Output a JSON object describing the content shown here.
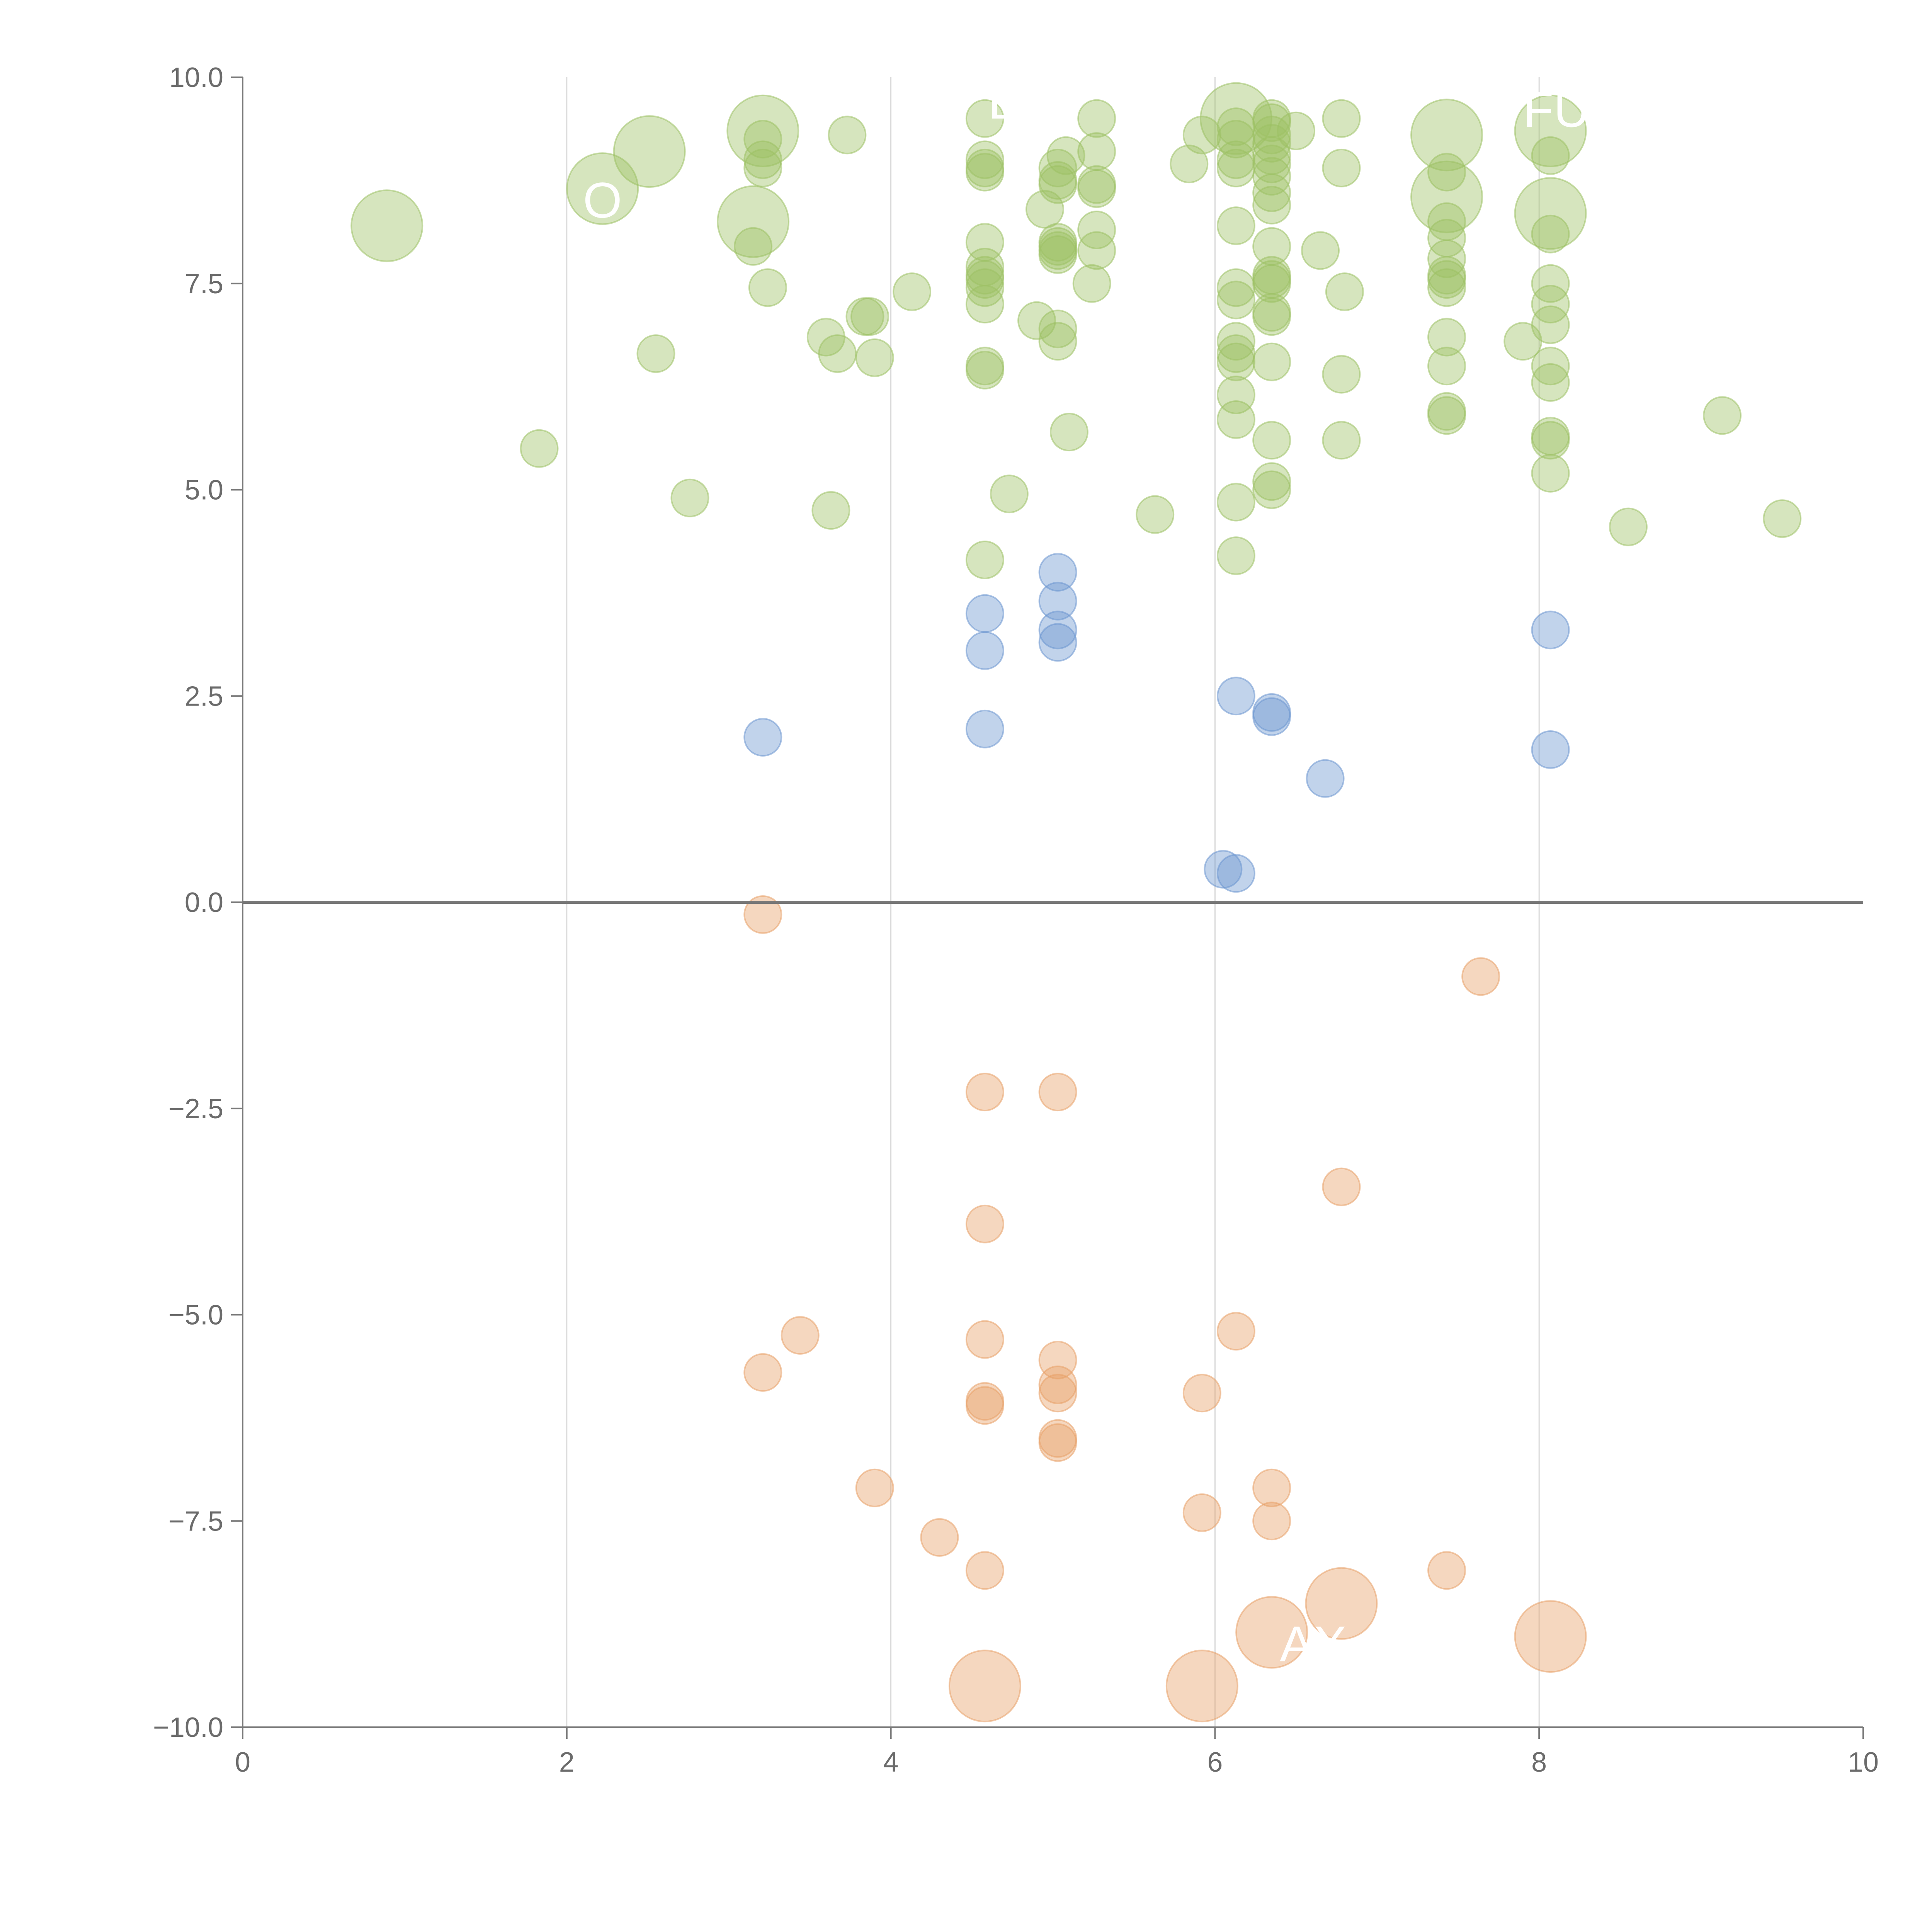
{
  "chart_data": {
    "type": "scatter",
    "title": "",
    "xlabel": "",
    "ylabel": "",
    "xlim": [
      0,
      10
    ],
    "ylim": [
      -10,
      10
    ],
    "x_ticks": [
      "0",
      "2",
      "4",
      "6",
      "8",
      "10"
    ],
    "y_ticks": [
      "10.0",
      "7.5",
      "5.0",
      "2.5",
      "0.0",
      "−2.5",
      "−5.0",
      "−7.5",
      "−10.0"
    ],
    "x_tick_values": [
      0,
      2,
      4,
      6,
      8,
      10
    ],
    "y_tick_values": [
      10,
      7.5,
      5,
      2.5,
      0,
      -2.5,
      -5,
      -7.5,
      -10
    ],
    "grid": "vertical",
    "reference_line_y": 0,
    "overlay_labels": [
      {
        "text": "E",
        "x": 4.6,
        "y": 9.5
      },
      {
        "text": "FULL",
        "x": 7.9,
        "y": 9.4
      },
      {
        "text": "O",
        "x": 2.1,
        "y": 8.3
      },
      {
        "text": "AX",
        "x": 6.4,
        "y": -9.2
      }
    ],
    "series": [
      {
        "name": "green",
        "color": "#9dc164",
        "points": [
          [
            0.89,
            8.2,
            2
          ],
          [
            2.22,
            8.65,
            2
          ],
          [
            2.51,
            9.1,
            2
          ],
          [
            3.21,
            9.35,
            2
          ],
          [
            3.15,
            8.25,
            2
          ],
          [
            6.13,
            9.5,
            2
          ],
          [
            7.43,
            9.3,
            2
          ],
          [
            7.43,
            8.55,
            2
          ],
          [
            8.07,
            9.35,
            2
          ],
          [
            8.07,
            8.35,
            2
          ],
          [
            1.83,
            5.5,
            1
          ],
          [
            2.55,
            6.65,
            1
          ],
          [
            2.76,
            4.9,
            1
          ],
          [
            3.15,
            7.95,
            1
          ],
          [
            3.24,
            7.45,
            1
          ],
          [
            3.21,
            9.25,
            1
          ],
          [
            3.21,
            9.0,
            1
          ],
          [
            3.21,
            8.9,
            1
          ],
          [
            3.6,
            6.85,
            1
          ],
          [
            3.63,
            4.75,
            1
          ],
          [
            3.67,
            6.65,
            1
          ],
          [
            3.73,
            9.3,
            1
          ],
          [
            3.84,
            7.1,
            1
          ],
          [
            3.87,
            7.1,
            1
          ],
          [
            3.9,
            6.6,
            1
          ],
          [
            4.13,
            7.4,
            1
          ],
          [
            4.58,
            9.5,
            1
          ],
          [
            4.58,
            9.0,
            1
          ],
          [
            4.58,
            8.9,
            1
          ],
          [
            4.58,
            8.85,
            1
          ],
          [
            4.58,
            8.0,
            1
          ],
          [
            4.58,
            7.7,
            1
          ],
          [
            4.58,
            7.6,
            1
          ],
          [
            4.58,
            7.55,
            1
          ],
          [
            4.58,
            7.45,
            1
          ],
          [
            4.58,
            7.25,
            1
          ],
          [
            4.58,
            6.5,
            1
          ],
          [
            4.58,
            6.45,
            1
          ],
          [
            4.58,
            4.15,
            1
          ],
          [
            4.73,
            4.95,
            1
          ],
          [
            4.9,
            7.05,
            1
          ],
          [
            4.95,
            8.4,
            1
          ],
          [
            5.03,
            8.9,
            1
          ],
          [
            5.03,
            8.75,
            1
          ],
          [
            5.03,
            8.7,
            1
          ],
          [
            5.03,
            8.0,
            1
          ],
          [
            5.03,
            7.95,
            1
          ],
          [
            5.03,
            7.9,
            1
          ],
          [
            5.03,
            7.85,
            1
          ],
          [
            5.03,
            6.95,
            1
          ],
          [
            5.03,
            6.8,
            1
          ],
          [
            5.08,
            9.05,
            1
          ],
          [
            5.1,
            5.7,
            1
          ],
          [
            5.24,
            7.5,
            1
          ],
          [
            5.27,
            9.5,
            1
          ],
          [
            5.27,
            9.1,
            1
          ],
          [
            5.27,
            8.7,
            1
          ],
          [
            5.27,
            8.65,
            1
          ],
          [
            5.27,
            8.15,
            1
          ],
          [
            5.27,
            7.9,
            1
          ],
          [
            5.63,
            4.7,
            1
          ],
          [
            5.84,
            8.95,
            1
          ],
          [
            5.92,
            9.3,
            1
          ],
          [
            6.13,
            9.4,
            1
          ],
          [
            6.13,
            9.25,
            1
          ],
          [
            6.13,
            9.0,
            1
          ],
          [
            6.13,
            8.9,
            1
          ],
          [
            6.13,
            8.2,
            1
          ],
          [
            6.13,
            7.45,
            1
          ],
          [
            6.13,
            7.3,
            1
          ],
          [
            6.13,
            6.8,
            1
          ],
          [
            6.13,
            6.65,
            1
          ],
          [
            6.13,
            6.55,
            1
          ],
          [
            6.13,
            6.15,
            1
          ],
          [
            6.13,
            5.85,
            1
          ],
          [
            6.13,
            4.85,
            1
          ],
          [
            6.13,
            4.2,
            1
          ],
          [
            6.35,
            9.5,
            1
          ],
          [
            6.35,
            9.45,
            1
          ],
          [
            6.35,
            9.3,
            1
          ],
          [
            6.35,
            9.2,
            1
          ],
          [
            6.35,
            9.05,
            1
          ],
          [
            6.35,
            8.95,
            1
          ],
          [
            6.35,
            8.8,
            1
          ],
          [
            6.35,
            8.6,
            1
          ],
          [
            6.35,
            8.45,
            1
          ],
          [
            6.35,
            7.95,
            1
          ],
          [
            6.35,
            7.6,
            1
          ],
          [
            6.35,
            7.55,
            1
          ],
          [
            6.35,
            7.5,
            1
          ],
          [
            6.35,
            7.15,
            1
          ],
          [
            6.35,
            7.1,
            1
          ],
          [
            6.35,
            6.55,
            1
          ],
          [
            6.35,
            5.6,
            1
          ],
          [
            6.35,
            5.1,
            1
          ],
          [
            6.35,
            5.0,
            1
          ],
          [
            6.5,
            9.35,
            1
          ],
          [
            6.65,
            7.9,
            1
          ],
          [
            6.78,
            9.5,
            1
          ],
          [
            6.78,
            8.9,
            1
          ],
          [
            6.78,
            6.4,
            1
          ],
          [
            6.78,
            5.6,
            1
          ],
          [
            6.8,
            7.4,
            1
          ],
          [
            7.43,
            8.85,
            1
          ],
          [
            7.43,
            8.25,
            1
          ],
          [
            7.43,
            8.05,
            1
          ],
          [
            7.43,
            7.8,
            1
          ],
          [
            7.43,
            7.6,
            1
          ],
          [
            7.43,
            7.55,
            1
          ],
          [
            7.43,
            7.45,
            1
          ],
          [
            7.43,
            6.85,
            1
          ],
          [
            7.43,
            6.5,
            1
          ],
          [
            7.43,
            5.95,
            1
          ],
          [
            7.43,
            5.9,
            1
          ],
          [
            7.9,
            6.8,
            1
          ],
          [
            8.07,
            9.05,
            1
          ],
          [
            8.07,
            8.1,
            1
          ],
          [
            8.07,
            7.5,
            1
          ],
          [
            8.07,
            7.25,
            1
          ],
          [
            8.07,
            7.0,
            1
          ],
          [
            8.07,
            6.5,
            1
          ],
          [
            8.07,
            6.3,
            1
          ],
          [
            8.07,
            5.65,
            1
          ],
          [
            8.07,
            5.6,
            1
          ],
          [
            8.07,
            5.2,
            1
          ],
          [
            8.55,
            4.55,
            1
          ],
          [
            9.13,
            5.9,
            1
          ],
          [
            9.5,
            4.65,
            1
          ]
        ]
      },
      {
        "name": "blue",
        "color": "#6b96cf",
        "points": [
          [
            3.21,
            2.0,
            1
          ],
          [
            4.58,
            3.5,
            1
          ],
          [
            4.58,
            3.05,
            1
          ],
          [
            4.58,
            2.1,
            1
          ],
          [
            5.03,
            4.0,
            1
          ],
          [
            5.03,
            3.65,
            1
          ],
          [
            5.03,
            3.3,
            1
          ],
          [
            5.03,
            3.15,
            1
          ],
          [
            6.05,
            0.4,
            1
          ],
          [
            6.13,
            2.5,
            1
          ],
          [
            6.13,
            0.35,
            1
          ],
          [
            6.35,
            2.3,
            1
          ],
          [
            6.35,
            2.25,
            1
          ],
          [
            6.68,
            1.5,
            1
          ],
          [
            8.07,
            3.3,
            1
          ],
          [
            8.07,
            1.85,
            1
          ]
        ]
      },
      {
        "name": "orange",
        "color": "#e8a067",
        "points": [
          [
            3.21,
            -0.15,
            1
          ],
          [
            3.21,
            -5.7,
            1
          ],
          [
            3.44,
            -5.25,
            1
          ],
          [
            3.9,
            -7.1,
            1
          ],
          [
            4.3,
            -7.7,
            1
          ],
          [
            4.58,
            -2.3,
            1
          ],
          [
            4.58,
            -3.9,
            1
          ],
          [
            4.58,
            -5.3,
            1
          ],
          [
            4.58,
            -6.05,
            1
          ],
          [
            4.58,
            -6.1,
            1
          ],
          [
            4.58,
            -8.1,
            1
          ],
          [
            5.03,
            -2.3,
            1
          ],
          [
            5.03,
            -5.55,
            1
          ],
          [
            5.03,
            -5.85,
            1
          ],
          [
            5.03,
            -5.95,
            1
          ],
          [
            5.03,
            -6.5,
            1
          ],
          [
            5.03,
            -6.55,
            1
          ],
          [
            5.92,
            -5.95,
            1
          ],
          [
            5.92,
            -7.4,
            1
          ],
          [
            6.13,
            -5.2,
            1
          ],
          [
            6.35,
            -7.1,
            1
          ],
          [
            6.35,
            -7.5,
            1
          ],
          [
            6.78,
            -3.45,
            1
          ],
          [
            7.43,
            -8.1,
            1
          ],
          [
            7.64,
            -0.9,
            1
          ],
          [
            4.58,
            -9.5,
            2
          ],
          [
            5.92,
            -9.5,
            2
          ],
          [
            6.35,
            -8.85,
            2
          ],
          [
            6.78,
            -8.5,
            2
          ],
          [
            8.07,
            -8.9,
            2
          ]
        ]
      }
    ]
  }
}
